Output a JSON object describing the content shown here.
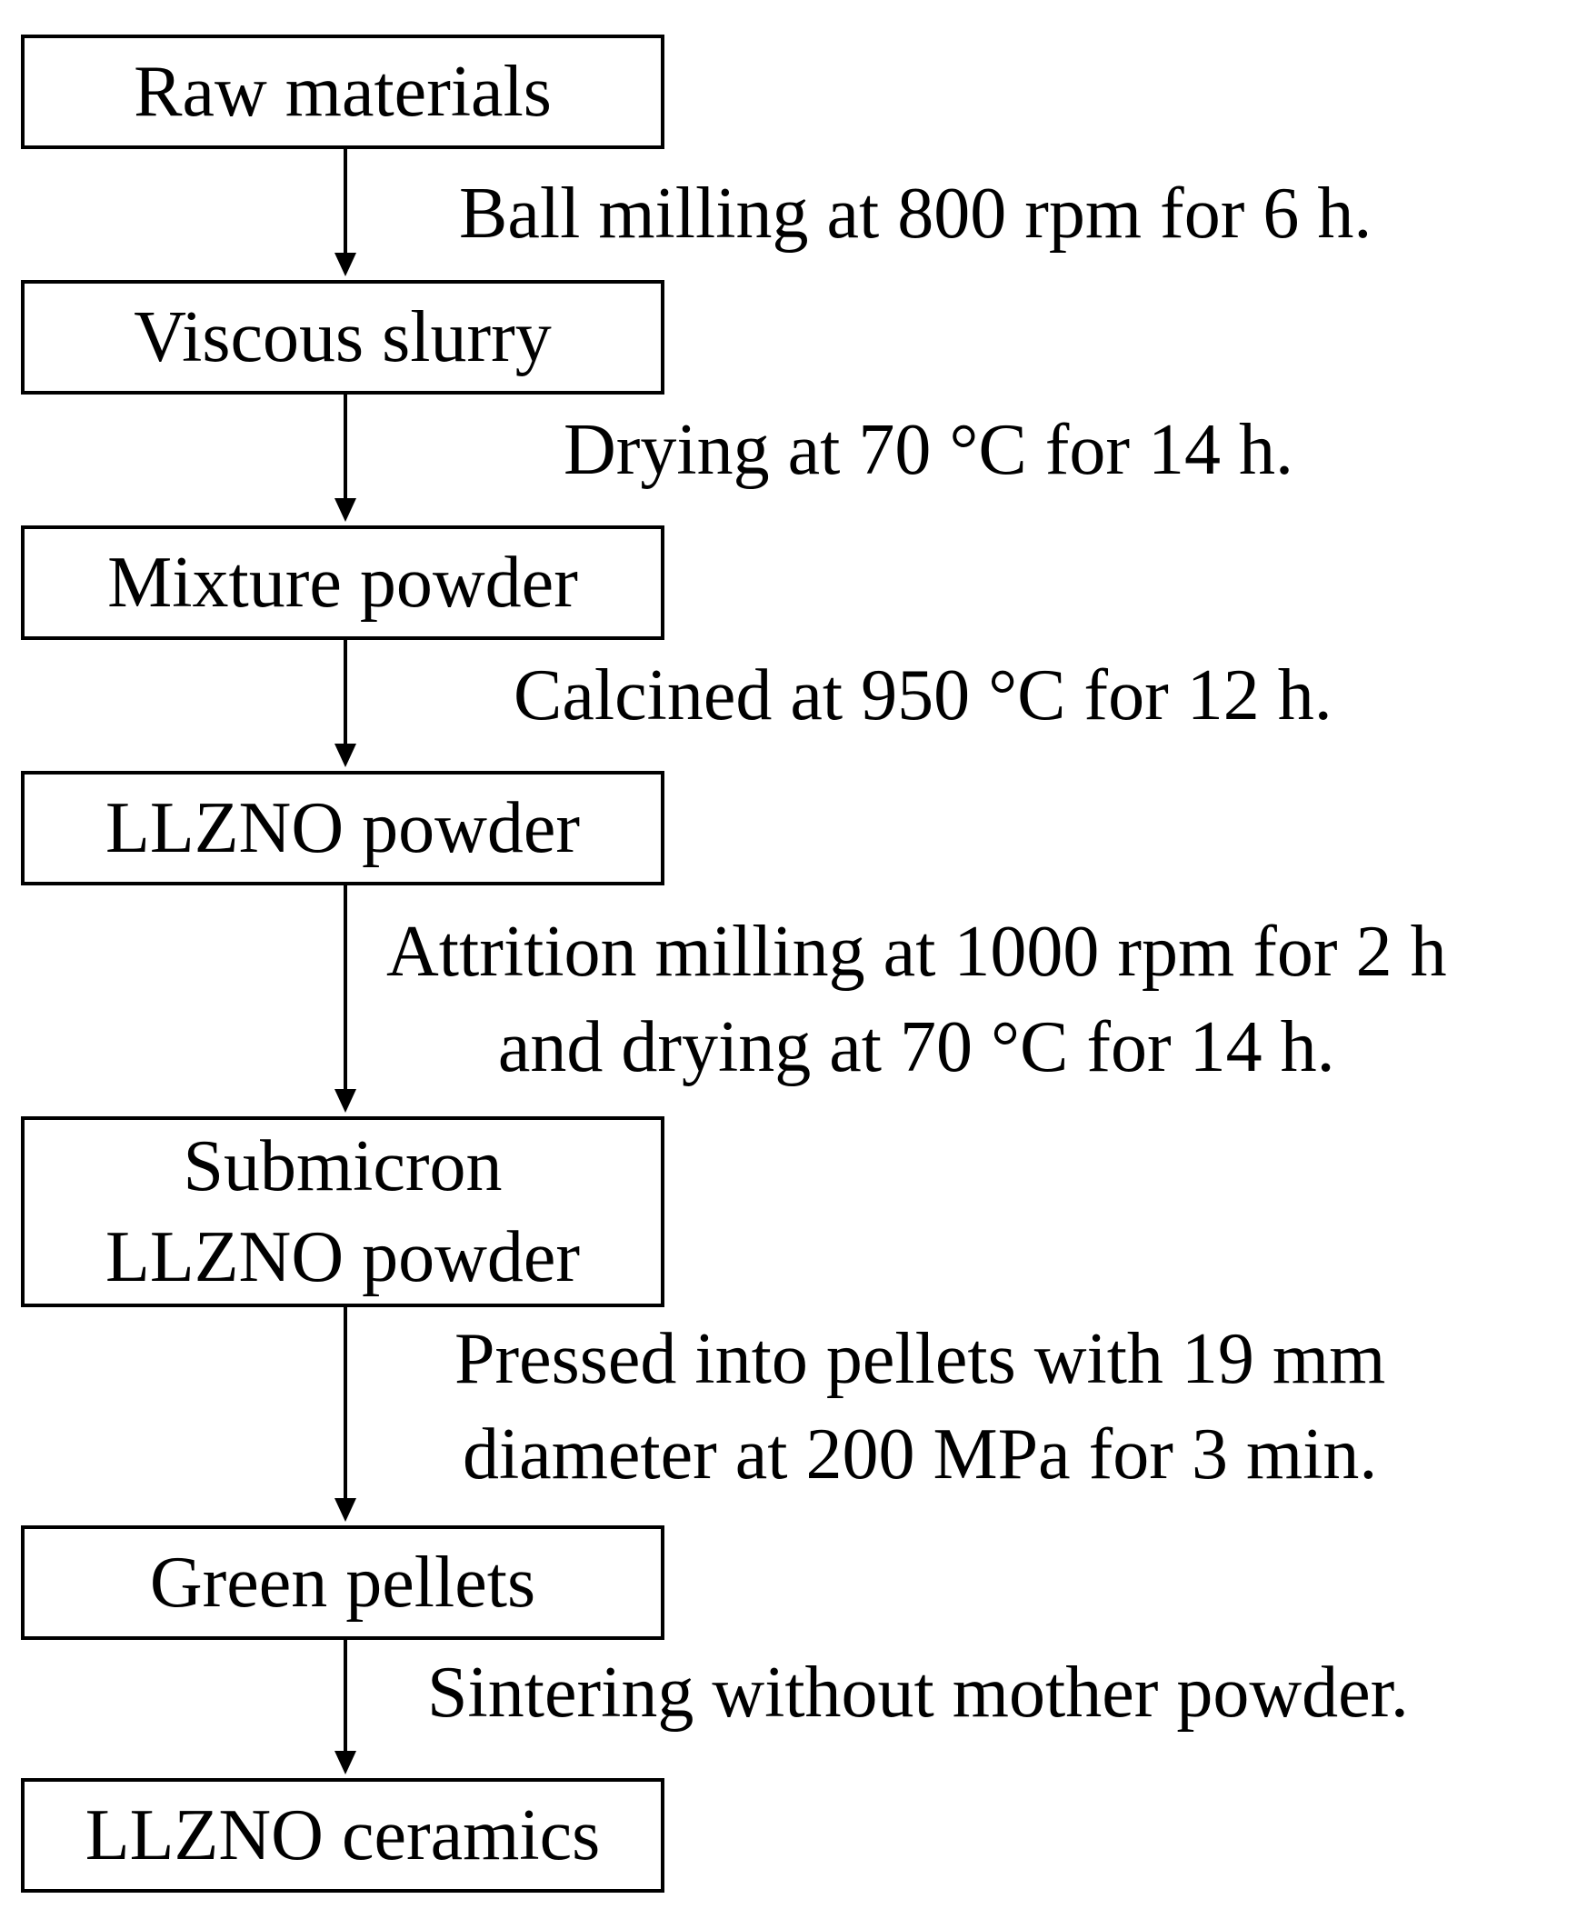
{
  "nodes": [
    {
      "id": "raw-materials",
      "lines": [
        "Raw materials"
      ]
    },
    {
      "id": "viscous-slurry",
      "lines": [
        "Viscous slurry"
      ]
    },
    {
      "id": "mixture-powder",
      "lines": [
        "Mixture powder"
      ]
    },
    {
      "id": "llzno-powder",
      "lines": [
        "LLZNO powder"
      ]
    },
    {
      "id": "submicron-llzno-powder",
      "lines": [
        "Submicron",
        "LLZNO powder"
      ]
    },
    {
      "id": "green-pellets",
      "lines": [
        "Green pellets"
      ]
    },
    {
      "id": "llzno-ceramics",
      "lines": [
        "LLZNO ceramics"
      ]
    }
  ],
  "steps": [
    {
      "lines": [
        "Ball milling at 800 rpm for 6 h."
      ]
    },
    {
      "lines": [
        "Drying at 70 °C for 14 h."
      ]
    },
    {
      "lines": [
        "Calcined at 950 °C for 12 h."
      ]
    },
    {
      "lines": [
        "Attrition milling at 1000 rpm for 2 h",
        "and drying at 70 °C for 14 h."
      ]
    },
    {
      "lines": [
        "Pressed into pellets with 19 mm",
        "diameter at 200 MPa for 3 min."
      ]
    },
    {
      "lines": [
        "Sintering without mother powder."
      ]
    }
  ]
}
